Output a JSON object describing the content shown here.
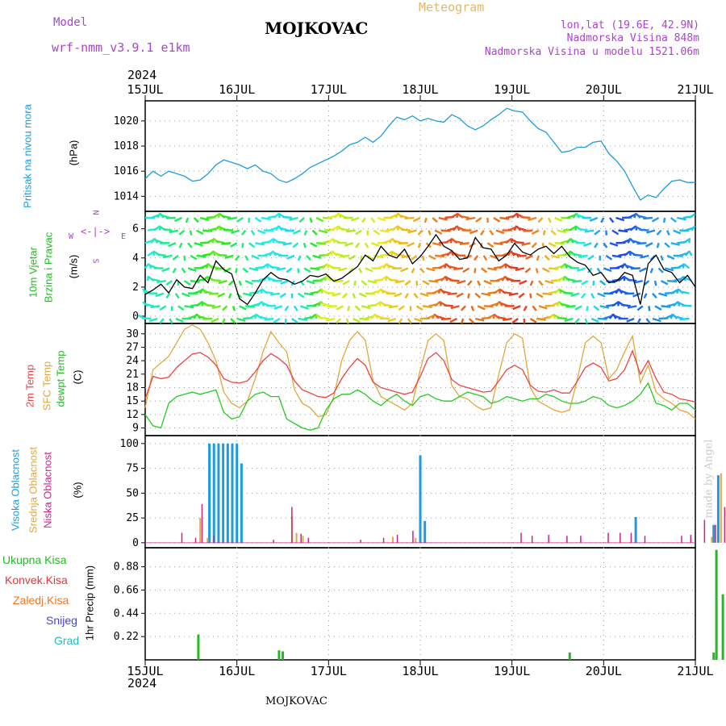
{
  "header": {
    "model_label": "Model",
    "model_value": "wrf-nmm_v3.9.1  e1km",
    "station": "MOJKOVAC",
    "product": "Meteogram",
    "lonlat": "lon,lat (19.6E, 42.9N)",
    "elevation": "Nadmorska Visina 848m",
    "model_elevation": "Nadmorska Visina u modelu 1521.06m",
    "year_top": "2024",
    "year_bottom": "2024",
    "footer_station": "MOJKOVAC",
    "credit": "made by Angel"
  },
  "colors": {
    "pressure": "#1e9be0",
    "t2m": "#ee4444",
    "tsfc": "#e0a83c",
    "dewpt": "#22cc22",
    "cloud_high": "#1e9be0",
    "cloud_mid": "#e0a83c",
    "cloud_low": "#cc2288",
    "precip_total": "#22bb22",
    "precip_conv": "#ee3333",
    "precip_frz": "#ee7722",
    "precip_snow": "#4444dd",
    "precip_grad": "#22bbbb",
    "wind_label": "#22bb22",
    "compass": "#aa44cc",
    "credit": "#cccccc"
  },
  "chart_data": [
    {
      "type": "line",
      "panel": "pressure",
      "ylabel_title": "Pritisak na nivou mora",
      "ylabel_unit": "(hPa)",
      "ylim": [
        1012.8,
        1021.6
      ],
      "yticks": [
        1014,
        1016,
        1018,
        1020
      ],
      "series": [
        {
          "values": [
            1015.4,
            1016.0,
            1015.6,
            1016.0,
            1015.8,
            1015.6,
            1015.2,
            1015.3,
            1015.8,
            1016.5,
            1016.9,
            1016.7,
            1016.5,
            1016.2,
            1016.5,
            1016.0,
            1015.8,
            1015.3,
            1015.1,
            1015.4,
            1015.8,
            1016.3,
            1016.6,
            1016.9,
            1017.2,
            1017.6,
            1018.1,
            1018.3,
            1018.7,
            1018.3,
            1018.8,
            1019.6,
            1020.3,
            1020.1,
            1020.4,
            1020.0,
            1020.2,
            1020.0,
            1019.9,
            1020.5,
            1020.2,
            1019.6,
            1019.3,
            1019.6,
            1020.1,
            1020.5,
            1021.0,
            1020.8,
            1020.7,
            1020.0,
            1019.4,
            1019.1,
            1018.3,
            1017.5,
            1017.6,
            1017.9,
            1017.9,
            1018.3,
            1018.4,
            1017.4,
            1016.8,
            1016.0,
            1014.8,
            1013.7,
            1014.1,
            1013.9,
            1014.6,
            1015.2,
            1015.3,
            1015.1,
            1015.1
          ]
        }
      ]
    },
    {
      "type": "line",
      "panel": "wind",
      "ylabel_title": "10m Vjetar",
      "ylabel_title2": "Brzina i Pravac",
      "ylabel_unit": "(m/s)",
      "compass": {
        "n": "N",
        "w": "W",
        "e": "E",
        "s": "S"
      },
      "ylim": [
        -0.5,
        7.2
      ],
      "yticks": [
        0,
        2,
        4,
        6
      ],
      "series": [
        {
          "values": [
            1.5,
            1.8,
            2.2,
            1.6,
            2.5,
            2.0,
            1.9,
            2.8,
            2.3,
            3.8,
            3.2,
            2.9,
            1.2,
            0.8,
            1.6,
            2.5,
            3.0,
            2.6,
            2.5,
            2.2,
            2.4,
            2.8,
            2.7,
            2.9,
            2.4,
            2.6,
            3.0,
            3.4,
            4.2,
            3.8,
            4.8,
            4.2,
            4.0,
            4.6,
            3.6,
            4.1,
            4.8,
            5.6,
            4.8,
            4.5,
            3.9,
            4.0,
            5.4,
            4.7,
            4.6,
            3.8,
            4.2,
            5.0,
            4.4,
            4.2,
            4.6,
            4.8,
            4.3,
            4.8,
            4.1,
            3.7,
            3.5,
            2.8,
            3.0,
            2.3,
            2.4,
            3.0,
            2.8,
            0.8,
            3.6,
            4.2,
            3.2,
            3.0,
            2.3,
            2.8,
            2.0
          ]
        }
      ]
    },
    {
      "type": "line",
      "panel": "temperature",
      "ylabel_title": "2m Temp",
      "ylabel_title2": "SFC Temp",
      "ylabel_title3": "dewpt Temp",
      "ylabel_unit": "(C)",
      "ylim": [
        7.3,
        32.3
      ],
      "yticks": [
        9,
        12,
        15,
        18,
        21,
        24,
        27,
        30
      ],
      "series": [
        {
          "name": "2m Temp",
          "values": [
            15.5,
            20.5,
            20.0,
            20.3,
            22.5,
            24.0,
            25.5,
            25.8,
            24.8,
            23.0,
            20.0,
            19.2,
            19.0,
            19.5,
            21.5,
            24.0,
            25.6,
            24.5,
            23.0,
            19.5,
            17.5,
            16.8,
            16.0,
            15.8,
            16.8,
            20.0,
            22.5,
            24.5,
            23.0,
            19.2,
            18.0,
            17.5,
            17.0,
            16.5,
            17.0,
            20.5,
            24.5,
            25.8,
            24.0,
            19.8,
            18.5,
            18.0,
            17.5,
            17.0,
            17.2,
            19.5,
            22.0,
            23.0,
            22.0,
            18.5,
            17.2,
            17.0,
            17.5,
            16.8,
            16.8,
            19.5,
            22.5,
            23.5,
            22.5,
            19.5,
            20.0,
            22.0,
            26.2,
            21.0,
            24.0,
            20.0,
            17.0,
            16.5,
            15.5,
            15.2,
            14.8
          ]
        },
        {
          "name": "SFC Temp",
          "values": [
            13.5,
            22.0,
            23.5,
            25.0,
            28.0,
            31.0,
            32.0,
            31.0,
            28.0,
            24.0,
            17.0,
            14.5,
            13.5,
            15.0,
            20.0,
            26.0,
            30.5,
            28.0,
            26.0,
            17.5,
            14.5,
            13.5,
            11.5,
            12.0,
            16.0,
            24.0,
            28.5,
            30.5,
            28.5,
            19.5,
            16.0,
            15.0,
            14.0,
            13.0,
            14.5,
            22.0,
            28.5,
            30.0,
            28.5,
            18.5,
            16.0,
            15.5,
            14.0,
            13.0,
            13.5,
            21.0,
            28.0,
            30.0,
            29.0,
            18.0,
            15.0,
            14.0,
            13.0,
            12.5,
            13.0,
            20.0,
            28.0,
            29.5,
            28.0,
            20.0,
            22.0,
            26.0,
            29.5,
            19.0,
            23.0,
            17.0,
            15.5,
            14.5,
            13.0,
            12.5,
            11.0
          ]
        },
        {
          "name": "dewpt Temp",
          "values": [
            12.0,
            9.5,
            9.0,
            14.5,
            16.0,
            16.5,
            17.0,
            16.5,
            17.0,
            17.5,
            12.5,
            11.0,
            11.5,
            15.0,
            16.5,
            17.0,
            16.0,
            16.0,
            11.0,
            10.0,
            9.0,
            8.5,
            9.0,
            13.0,
            15.5,
            16.5,
            16.5,
            17.5,
            16.5,
            15.0,
            14.0,
            15.5,
            16.5,
            15.0,
            14.0,
            16.0,
            16.5,
            15.5,
            15.0,
            15.0,
            16.0,
            17.0,
            16.5,
            16.0,
            14.5,
            15.0,
            16.0,
            15.5,
            15.0,
            15.5,
            15.5,
            16.5,
            16.0,
            15.0,
            14.5,
            14.5,
            15.0,
            16.0,
            15.5,
            14.0,
            13.5,
            14.0,
            15.0,
            16.5,
            19.0,
            14.5,
            14.0,
            13.0,
            14.5,
            14.5,
            13.0
          ]
        }
      ]
    },
    {
      "type": "bar",
      "panel": "clouds",
      "ylabel_title": "Visoka Oblacnost",
      "ylabel_title2": "Srednja Oblacnost",
      "ylabel_title3": "Niska Oblacnost",
      "ylabel_unit": "(%)",
      "ylim": [
        -5,
        108
      ],
      "yticks": [
        0,
        25,
        50,
        75,
        100
      ],
      "series": [
        {
          "name": "Visoka Oblacnost",
          "points": [
            [
              15.7,
              100
            ],
            [
              15.75,
              100
            ],
            [
              15.8,
              100
            ],
            [
              15.85,
              100
            ],
            [
              15.9,
              100
            ],
            [
              15.95,
              100
            ],
            [
              16.0,
              100
            ],
            [
              16.05,
              80
            ],
            [
              18.0,
              88
            ],
            [
              18.05,
              22
            ],
            [
              20.35,
              26
            ],
            [
              21.2,
              18
            ],
            [
              21.25,
              68
            ],
            [
              21.4,
              22
            ]
          ]
        },
        {
          "name": "Srednja Oblacnost",
          "points": [
            [
              15.6,
              25
            ],
            [
              15.68,
              5
            ],
            [
              16.6,
              27
            ],
            [
              16.65,
              10
            ],
            [
              16.72,
              7
            ],
            [
              17.7,
              6
            ],
            [
              17.95,
              5
            ],
            [
              21.18,
              6
            ],
            [
              21.28,
              70
            ],
            [
              21.35,
              82
            ],
            [
              21.42,
              23
            ]
          ]
        },
        {
          "name": "Niska Oblacnost",
          "points": [
            [
              15.4,
              10
            ],
            [
              15.55,
              5
            ],
            [
              15.62,
              39
            ],
            [
              15.75,
              7
            ],
            [
              16.4,
              3
            ],
            [
              16.6,
              36
            ],
            [
              16.7,
              9
            ],
            [
              16.78,
              5
            ],
            [
              17.35,
              3
            ],
            [
              17.6,
              5
            ],
            [
              17.75,
              8
            ],
            [
              17.92,
              12
            ],
            [
              19.1,
              10
            ],
            [
              19.22,
              7
            ],
            [
              19.4,
              8
            ],
            [
              19.6,
              7
            ],
            [
              19.75,
              7
            ],
            [
              20.05,
              10
            ],
            [
              20.18,
              10
            ],
            [
              20.3,
              10
            ],
            [
              20.45,
              7
            ],
            [
              20.85,
              7
            ],
            [
              20.95,
              8
            ],
            [
              21.1,
              23
            ],
            [
              21.22,
              18
            ],
            [
              21.32,
              36
            ],
            [
              21.38,
              7
            ]
          ]
        }
      ]
    },
    {
      "type": "bar",
      "panel": "precip",
      "ylabel_unit": "1hr Precip (mm)",
      "legend": [
        "Ukupna Kisa",
        "Konvek.Kisa",
        "Zaledj.Kisa",
        "Snijeg",
        "Grad"
      ],
      "ylim": [
        0,
        1.06
      ],
      "yticks": [
        0.22,
        0.44,
        0.66,
        0.88
      ],
      "series": [
        {
          "name": "Ukupna Kisa",
          "points": [
            [
              15.58,
              0.24
            ],
            [
              16.46,
              0.09
            ],
            [
              16.5,
              0.08
            ],
            [
              19.63,
              0.07
            ],
            [
              21.2,
              0.07
            ],
            [
              21.23,
              1.04
            ],
            [
              21.3,
              0.62
            ],
            [
              21.35,
              0.02
            ]
          ]
        }
      ]
    }
  ],
  "x_axis": {
    "labels": [
      "15JUL",
      "16JUL",
      "17JUL",
      "18JUL",
      "19JUL",
      "20JUL",
      "21JUL"
    ]
  }
}
